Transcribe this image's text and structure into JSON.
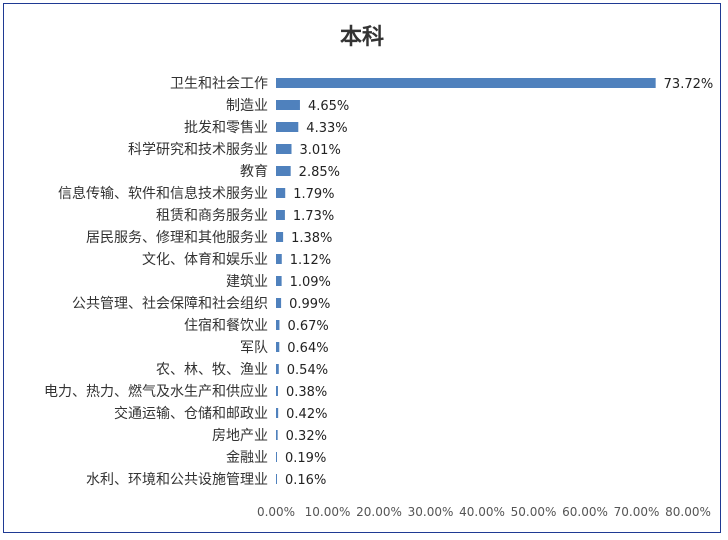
{
  "chart_data": {
    "type": "bar",
    "orientation": "horizontal",
    "title": "本科",
    "categories": [
      "卫生和社会工作",
      "制造业",
      "批发和零售业",
      "科学研究和技术服务业",
      "教育",
      "信息传输、软件和信息技术服务业",
      "租赁和商务服务业",
      "居民服务、修理和其他服务业",
      "文化、体育和娱乐业",
      "建筑业",
      "公共管理、社会保障和社会组织",
      "住宿和餐饮业",
      "军队",
      "农、林、牧、渔业",
      "电力、热力、燃气及水生产和供应业",
      "交通运输、仓储和邮政业",
      "房地产业",
      "金融业",
      "水利、环境和公共设施管理业"
    ],
    "values": [
      73.72,
      4.65,
      4.33,
      3.01,
      2.85,
      1.79,
      1.73,
      1.38,
      1.12,
      1.09,
      0.99,
      0.67,
      0.64,
      0.54,
      0.38,
      0.42,
      0.32,
      0.19,
      0.16
    ],
    "value_labels": [
      "73.72%",
      "4.65%",
      "4.33%",
      "3.01%",
      "2.85%",
      "1.79%",
      "1.73%",
      "1.38%",
      "1.12%",
      "1.09%",
      "0.99%",
      "0.67%",
      "0.64%",
      "0.54%",
      "0.38%",
      "0.42%",
      "0.32%",
      "0.19%",
      "0.16%"
    ],
    "xlim": [
      0,
      80
    ],
    "x_ticks": [
      "0.00%",
      "10.00%",
      "20.00%",
      "30.00%",
      "40.00%",
      "50.00%",
      "60.00%",
      "70.00%",
      "80.00%"
    ],
    "grid": false,
    "legend": "none",
    "bar_color": "#4f81bd"
  }
}
